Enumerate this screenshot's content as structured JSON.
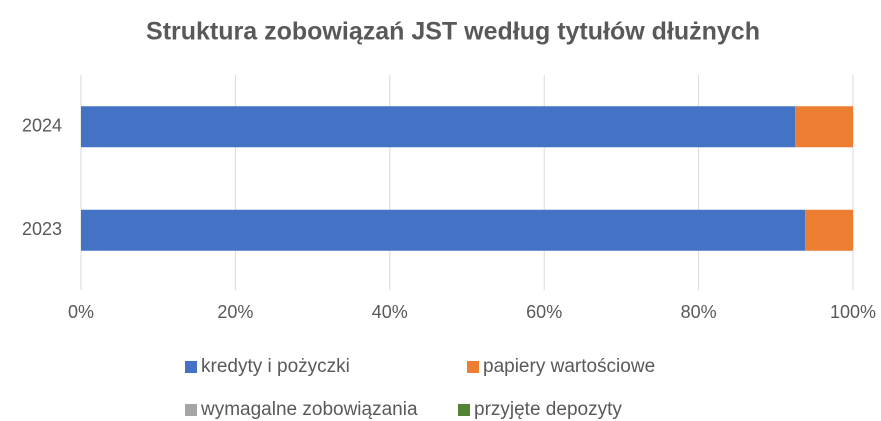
{
  "chart_data": {
    "type": "stacked-bar-horizontal",
    "title": "Struktura zobowiązań JST według tytułów dłużnych",
    "categories": [
      "2023",
      "2024"
    ],
    "series": [
      {
        "name": "kredyty i pożyczki",
        "color": "#4472c4",
        "values": [
          93.8,
          92.5
        ]
      },
      {
        "name": "papiery wartościowe",
        "color": "#ed7d31",
        "values": [
          6.2,
          7.5
        ]
      },
      {
        "name": "wymagalne zobowiązania",
        "color": "#a5a5a5",
        "values": [
          0,
          0
        ]
      },
      {
        "name": "przyjęte depozyty",
        "color": "#548235",
        "values": [
          0,
          0
        ]
      }
    ],
    "xlim": [
      0,
      100
    ],
    "xticks": [
      {
        "value": 0,
        "label": "0%"
      },
      {
        "value": 20,
        "label": "20%"
      },
      {
        "value": 40,
        "label": "40%"
      },
      {
        "value": 60,
        "label": "60%"
      },
      {
        "value": 80,
        "label": "80%"
      },
      {
        "value": 100,
        "label": "100%"
      }
    ],
    "grid": true,
    "legend": "bottom"
  }
}
